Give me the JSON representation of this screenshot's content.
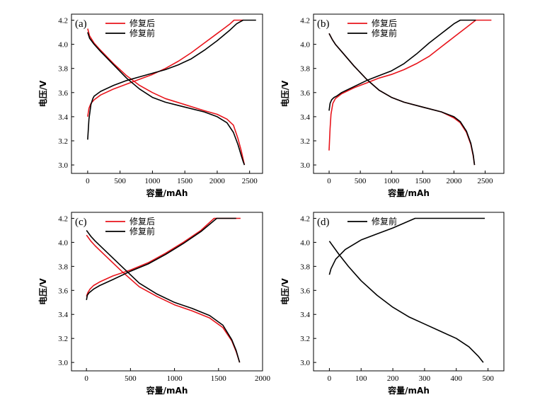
{
  "chart_data": [
    {
      "type": "line",
      "panel_label": "(a)",
      "xlabel": "容量/mAh",
      "ylabel": "电压/V",
      "xlim": [
        -250,
        2700
      ],
      "ylim": [
        2.93,
        4.25
      ],
      "xticks": [
        0,
        500,
        1000,
        1500,
        2000,
        2500
      ],
      "yticks": [
        3.0,
        3.2,
        3.4,
        3.6,
        3.8,
        4.0,
        4.2
      ],
      "legend_position": "top",
      "series": [
        {
          "name": "修复后",
          "color": "#e8141b",
          "part": "charge",
          "x": [
            0,
            20,
            50,
            100,
            200,
            400,
            600,
            800,
            1000,
            1200,
            1400,
            1600,
            1800,
            2000,
            2100,
            2200,
            2260,
            2400
          ],
          "y": [
            3.4,
            3.47,
            3.51,
            3.54,
            3.58,
            3.63,
            3.67,
            3.71,
            3.75,
            3.8,
            3.86,
            3.93,
            4.01,
            4.09,
            4.13,
            4.17,
            4.2,
            4.2
          ]
        },
        {
          "name": "修复后",
          "color": "#e8141b",
          "part": "discharge",
          "x": [
            0,
            30,
            100,
            200,
            400,
            600,
            800,
            1000,
            1200,
            1500,
            1800,
            2000,
            2150,
            2250,
            2320,
            2370,
            2400,
            2420
          ],
          "y": [
            4.13,
            4.07,
            4.01,
            3.95,
            3.84,
            3.74,
            3.66,
            3.6,
            3.55,
            3.5,
            3.45,
            3.42,
            3.38,
            3.33,
            3.22,
            3.12,
            3.05,
            3.0
          ]
        },
        {
          "name": "修复前",
          "color": "#000000",
          "part": "charge",
          "x": [
            0,
            20,
            50,
            80,
            100,
            150,
            200,
            400,
            600,
            800,
            1000,
            1200,
            1400,
            1600,
            1800,
            2000,
            2200,
            2300,
            2400,
            2600
          ],
          "y": [
            3.21,
            3.38,
            3.5,
            3.55,
            3.57,
            3.59,
            3.61,
            3.66,
            3.7,
            3.73,
            3.76,
            3.79,
            3.83,
            3.88,
            3.95,
            4.03,
            4.12,
            4.17,
            4.2,
            4.2
          ]
        },
        {
          "name": "修复前",
          "color": "#000000",
          "part": "discharge",
          "x": [
            0,
            30,
            100,
            200,
            400,
            600,
            800,
            1000,
            1200,
            1500,
            1800,
            2000,
            2150,
            2250,
            2320,
            2370,
            2400,
            2420
          ],
          "y": [
            4.1,
            4.05,
            4.0,
            3.94,
            3.83,
            3.72,
            3.63,
            3.56,
            3.52,
            3.48,
            3.44,
            3.4,
            3.35,
            3.27,
            3.17,
            3.08,
            3.03,
            3.0
          ]
        }
      ]
    },
    {
      "type": "line",
      "panel_label": "(b)",
      "xlabel": "容量/mAh",
      "ylabel": "电压/V",
      "xlim": [
        -250,
        2800
      ],
      "ylim": [
        2.93,
        4.25
      ],
      "xticks": [
        0,
        500,
        1000,
        1500,
        2000,
        2500
      ],
      "yticks": [
        3.0,
        3.2,
        3.4,
        3.6,
        3.8,
        4.0,
        4.2
      ],
      "legend_position": "top-right",
      "series": [
        {
          "name": "修复后",
          "color": "#e8141b",
          "part": "charge",
          "x": [
            0,
            15,
            30,
            60,
            100,
            150,
            200,
            400,
            600,
            800,
            1000,
            1200,
            1400,
            1600,
            1800,
            2000,
            2200,
            2350,
            2600
          ],
          "y": [
            3.12,
            3.3,
            3.42,
            3.51,
            3.55,
            3.57,
            3.59,
            3.64,
            3.68,
            3.72,
            3.75,
            3.79,
            3.84,
            3.9,
            3.98,
            4.06,
            4.14,
            4.2,
            4.2
          ]
        },
        {
          "name": "修复后",
          "color": "#e8141b",
          "part": "discharge",
          "x": [
            0,
            50,
            100,
            200,
            400,
            600,
            800,
            1000,
            1200,
            1500,
            1800,
            2000,
            2100,
            2200,
            2270,
            2310,
            2330
          ],
          "y": [
            4.09,
            4.04,
            4.0,
            3.94,
            3.82,
            3.71,
            3.62,
            3.56,
            3.52,
            3.48,
            3.44,
            3.39,
            3.35,
            3.27,
            3.17,
            3.07,
            3.0
          ]
        },
        {
          "name": "修复前",
          "color": "#000000",
          "part": "charge",
          "x": [
            0,
            15,
            40,
            80,
            120,
            200,
            400,
            600,
            800,
            1000,
            1200,
            1400,
            1600,
            1800,
            2000,
            2100,
            2350
          ],
          "y": [
            3.45,
            3.51,
            3.54,
            3.56,
            3.57,
            3.6,
            3.65,
            3.7,
            3.74,
            3.78,
            3.84,
            3.92,
            4.01,
            4.09,
            4.17,
            4.2,
            4.2
          ]
        },
        {
          "name": "修复前",
          "color": "#000000",
          "part": "discharge",
          "x": [
            0,
            50,
            100,
            200,
            400,
            600,
            800,
            1000,
            1200,
            1500,
            1800,
            2000,
            2100,
            2200,
            2270,
            2310,
            2330
          ],
          "y": [
            4.09,
            4.04,
            4.0,
            3.94,
            3.82,
            3.71,
            3.62,
            3.56,
            3.52,
            3.48,
            3.44,
            3.4,
            3.36,
            3.28,
            3.18,
            3.08,
            3.0
          ]
        }
      ]
    },
    {
      "type": "line",
      "panel_label": "(c)",
      "xlabel": "容量/mAh",
      "ylabel": "电压/V",
      "xlim": [
        -170,
        2000
      ],
      "ylim": [
        2.93,
        4.25
      ],
      "xticks": [
        0,
        500,
        1000,
        1500,
        2000
      ],
      "yticks": [
        3.0,
        3.2,
        3.4,
        3.6,
        3.8,
        4.0,
        4.2
      ],
      "legend_position": "top",
      "series": [
        {
          "name": "修复后",
          "color": "#e8141b",
          "part": "charge",
          "x": [
            0,
            15,
            40,
            80,
            150,
            300,
            500,
            700,
            900,
            1100,
            1300,
            1450,
            1750
          ],
          "y": [
            3.55,
            3.58,
            3.61,
            3.64,
            3.67,
            3.72,
            3.77,
            3.83,
            3.91,
            4.0,
            4.1,
            4.2,
            4.2
          ]
        },
        {
          "name": "修复后",
          "color": "#e8141b",
          "part": "discharge",
          "x": [
            0,
            50,
            100,
            200,
            400,
            600,
            800,
            1000,
            1200,
            1400,
            1550,
            1650,
            1700,
            1740
          ],
          "y": [
            4.06,
            4.01,
            3.97,
            3.9,
            3.76,
            3.63,
            3.55,
            3.48,
            3.43,
            3.37,
            3.29,
            3.18,
            3.09,
            3.0
          ]
        },
        {
          "name": "修复前",
          "color": "#000000",
          "part": "charge",
          "x": [
            0,
            10,
            30,
            80,
            150,
            300,
            500,
            700,
            900,
            1100,
            1300,
            1480,
            1700
          ],
          "y": [
            3.52,
            3.56,
            3.58,
            3.61,
            3.64,
            3.69,
            3.76,
            3.82,
            3.9,
            3.99,
            4.09,
            4.2,
            4.2
          ]
        },
        {
          "name": "修复前",
          "color": "#000000",
          "part": "discharge",
          "x": [
            0,
            50,
            100,
            200,
            400,
            600,
            800,
            1000,
            1200,
            1400,
            1550,
            1650,
            1700,
            1740
          ],
          "y": [
            4.1,
            4.05,
            4.01,
            3.94,
            3.8,
            3.66,
            3.57,
            3.5,
            3.45,
            3.39,
            3.31,
            3.19,
            3.1,
            3.0
          ]
        }
      ]
    },
    {
      "type": "line",
      "panel_label": "(d)",
      "xlabel": "容量/mAh",
      "ylabel": "电压/V",
      "xlim": [
        -50,
        550
      ],
      "ylim": [
        2.93,
        4.25
      ],
      "xticks": [
        0,
        100,
        200,
        300,
        400,
        500
      ],
      "yticks": [
        3.0,
        3.2,
        3.4,
        3.6,
        3.8,
        4.0,
        4.2
      ],
      "legend_position": "top",
      "series": [
        {
          "name": "修复前",
          "color": "#000000",
          "part": "charge",
          "x": [
            0,
            5,
            20,
            50,
            100,
            150,
            200,
            270,
            490
          ],
          "y": [
            3.73,
            3.78,
            3.86,
            3.94,
            4.02,
            4.07,
            4.12,
            4.2,
            4.2
          ]
        },
        {
          "name": "修复前",
          "color": "#000000",
          "part": "discharge",
          "x": [
            0,
            30,
            60,
            100,
            150,
            200,
            250,
            300,
            350,
            400,
            440,
            470,
            485
          ],
          "y": [
            4.01,
            3.9,
            3.8,
            3.68,
            3.56,
            3.46,
            3.38,
            3.32,
            3.26,
            3.2,
            3.13,
            3.05,
            3.0
          ]
        }
      ]
    }
  ]
}
